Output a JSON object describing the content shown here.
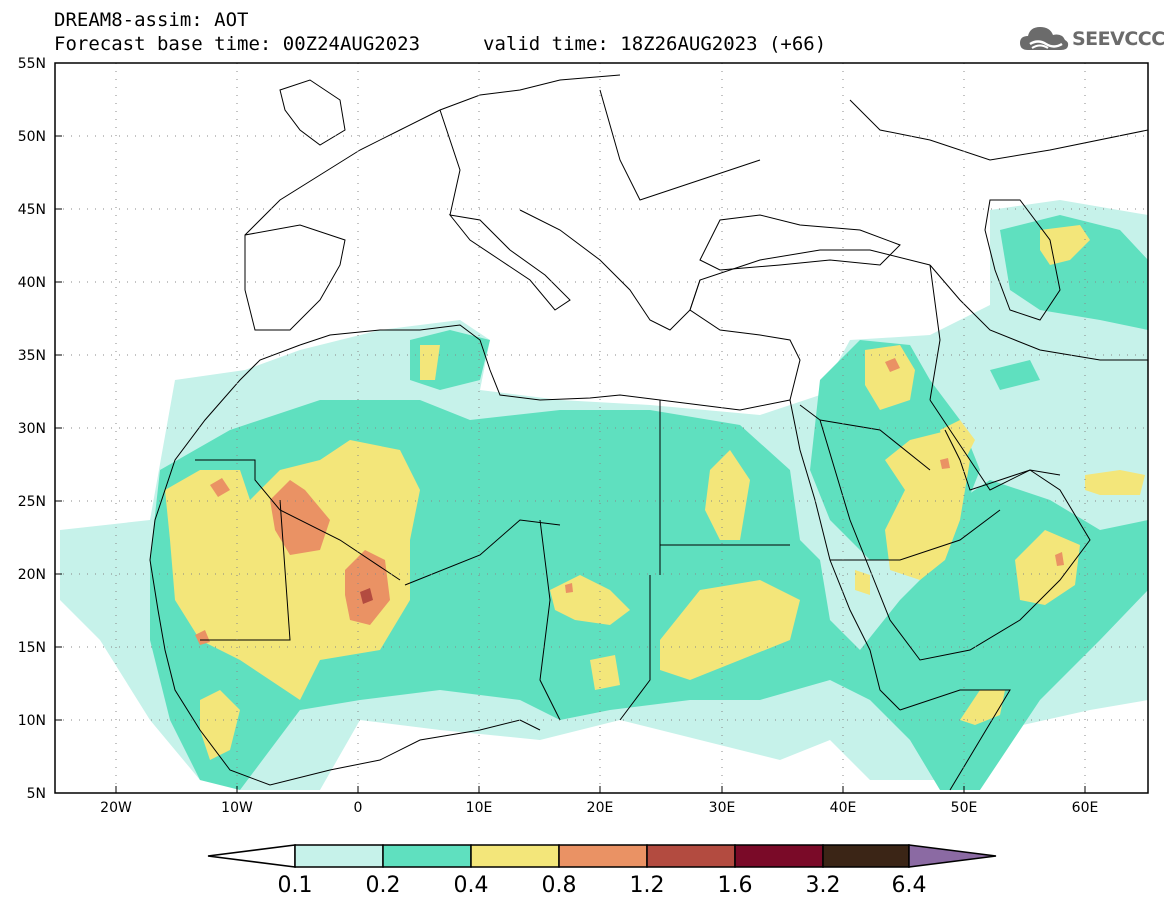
{
  "header": {
    "line1": "DREAM8-assim: AOT",
    "line2": "Forecast base time: 00Z24AUG2023",
    "valid": "valid time: 18Z26AUG2023 (+66)"
  },
  "logo": {
    "text": "SEEVCCC",
    "icon": "cloud-icon"
  },
  "map": {
    "lon_range": [
      -25,
      65
    ],
    "lat_range": [
      5,
      55
    ],
    "x_ticks": [
      "20W",
      "10W",
      "0",
      "10E",
      "20E",
      "30E",
      "40E",
      "50E",
      "60E"
    ],
    "y_ticks": [
      "5N",
      "10N",
      "15N",
      "20N",
      "25N",
      "30N",
      "35N",
      "40N",
      "45N",
      "50N",
      "55N"
    ]
  },
  "colorbar": {
    "labels": [
      "0.1",
      "0.2",
      "0.4",
      "0.8",
      "1.2",
      "1.6",
      "3.2",
      "6.4"
    ],
    "colors": [
      "#c6f2ea",
      "#5fe0bf",
      "#f3e67a",
      "#ea9264",
      "#b34b40",
      "#7a0a28",
      "#3b2516",
      "#8b6aa3"
    ],
    "under_color": "#ffffff"
  }
}
